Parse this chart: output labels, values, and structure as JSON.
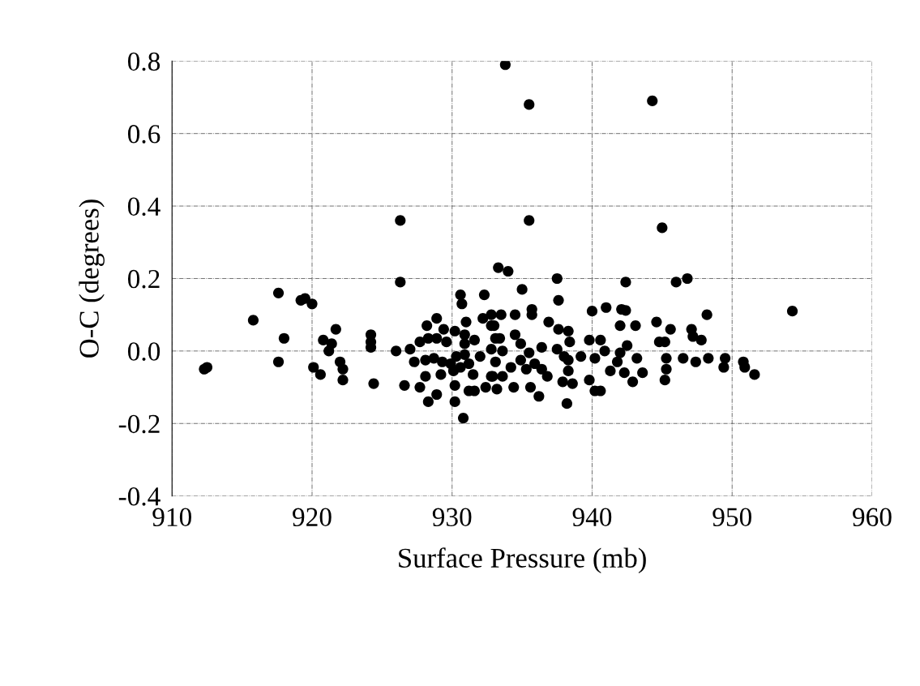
{
  "chart_data": {
    "type": "scatter",
    "xlabel": "Surface Pressure (mb)",
    "ylabel": "O-C (degrees)",
    "xlim": [
      910,
      960
    ],
    "xticks": [
      910,
      920,
      930,
      940,
      950,
      960
    ],
    "ylim": [
      -0.4,
      0.8
    ],
    "yticks": [
      {
        "value": -0.4,
        "label": "-0.4"
      },
      {
        "value": -0.2,
        "label": "-0.2"
      },
      {
        "value": 0,
        "label": "0.0"
      },
      {
        "value": 0.2,
        "label": "0.2"
      },
      {
        "value": 0.4,
        "label": "0.4"
      },
      {
        "value": 0.6,
        "label": "0.6"
      },
      {
        "value": 0.8,
        "label": "0.8"
      }
    ],
    "grid": true,
    "marker": "circle",
    "series": [
      {
        "color": "#000000",
        "x": [
          933.8,
          935.5,
          944.3,
          926.3,
          935.5,
          945.0,
          926.3,
          933.3,
          934.0,
          937.5,
          942.4,
          946.0,
          946.8,
          935.0,
          937.6,
          954.3,
          948.2,
          940.0,
          941.0,
          942.1,
          942.4,
          942.0,
          943.1,
          944.6,
          945.6,
          947.1,
          947.2,
          947.8,
          944.8,
          945.2,
          945.3,
          945.3,
          945.2,
          946.5,
          947.4,
          948.3,
          949.5,
          949.4,
          950.8,
          950.9,
          951.6,
          939.8,
          940.6,
          940.9,
          942.0,
          942.5,
          943.2,
          941.8,
          942.3,
          942.9,
          943.6,
          939.8,
          940.2,
          940.6,
          940.2,
          939.2,
          941.3,
          936.9,
          937.6,
          938.3,
          935.7,
          935.7,
          938.4,
          937.5,
          936.4,
          934.9,
          938.0,
          938.3,
          938.3,
          937.9,
          938.6,
          938.2,
          936.2,
          935.6,
          936.8,
          935.9,
          934.9,
          934.4,
          933.2,
          932.4,
          933.6,
          933.4,
          934.5,
          933.5,
          934.5,
          932.8,
          935.3,
          936.4,
          933.6,
          934.2,
          932.8,
          935.5,
          912.3,
          912.5,
          915.8,
          917.6,
          917.6,
          918.0,
          919.2,
          919.5,
          920.0,
          920.1,
          920.6,
          920.8,
          921.4,
          921.2,
          921.7,
          922.0,
          922.2,
          922.2,
          924.2,
          924.2,
          924.2,
          924.4,
          926.0,
          927.0,
          926.6,
          927.7,
          927.3,
          927.7,
          928.3,
          928.9,
          928.2,
          928.9,
          929.6,
          929.4,
          930.2,
          930.9,
          931.0,
          930.6,
          930.7,
          932.3,
          930.9,
          931.6,
          928.1,
          928.7,
          929.3,
          929.9,
          930.3,
          930.9,
          930.6,
          931.2,
          932.0,
          931.5,
          928.1,
          929.2,
          930.1,
          930.2,
          930.2,
          928.9,
          928.3,
          930.8,
          931.2,
          931.6,
          932.2,
          932.8,
          933.0,
          933.1,
          932.8,
          933.1,
          932.9
        ],
        "values": [
          0.79,
          0.68,
          0.69,
          0.36,
          0.36,
          0.34,
          0.19,
          0.23,
          0.22,
          0.2,
          0.19,
          0.19,
          0.2,
          0.17,
          0.14,
          0.11,
          0.1,
          0.11,
          0.12,
          0.115,
          0.112,
          0.07,
          0.07,
          0.08,
          0.06,
          0.06,
          0.04,
          0.03,
          0.025,
          0.025,
          -0.02,
          -0.05,
          -0.08,
          -0.02,
          -0.03,
          -0.02,
          -0.02,
          -0.045,
          -0.03,
          -0.045,
          -0.065,
          0.03,
          0.03,
          0.0,
          -0.005,
          0.015,
          -0.02,
          -0.03,
          -0.06,
          -0.085,
          -0.06,
          -0.08,
          -0.11,
          -0.11,
          -0.02,
          -0.015,
          -0.055,
          0.08,
          0.06,
          0.055,
          0.115,
          0.1,
          0.025,
          0.005,
          0.01,
          0.02,
          -0.015,
          -0.025,
          -0.055,
          -0.085,
          -0.09,
          -0.145,
          -0.125,
          -0.1,
          -0.07,
          -0.035,
          -0.025,
          -0.1,
          -0.105,
          -0.1,
          0.0,
          0.035,
          0.045,
          0.1,
          0.1,
          0.07,
          -0.05,
          -0.05,
          -0.07,
          -0.045,
          -0.07,
          -0.005,
          -0.05,
          -0.045,
          0.085,
          0.16,
          -0.03,
          0.035,
          0.14,
          0.145,
          0.13,
          -0.045,
          -0.065,
          0.03,
          0.02,
          0.0,
          0.06,
          -0.03,
          -0.05,
          -0.08,
          0.045,
          0.025,
          0.01,
          -0.09,
          0.0,
          0.005,
          -0.095,
          -0.1,
          -0.03,
          0.025,
          0.035,
          0.09,
          0.07,
          0.035,
          0.025,
          0.06,
          0.055,
          0.045,
          0.08,
          0.155,
          0.13,
          0.155,
          0.02,
          0.03,
          -0.025,
          -0.02,
          -0.03,
          -0.035,
          -0.015,
          -0.01,
          -0.045,
          -0.035,
          -0.015,
          -0.065,
          -0.07,
          -0.065,
          -0.055,
          -0.095,
          -0.14,
          -0.12,
          -0.14,
          -0.185,
          -0.11,
          -0.11,
          0.09,
          0.1,
          0.07,
          0.035,
          0.005,
          -0.03,
          -0.07
        ]
      }
    ]
  }
}
